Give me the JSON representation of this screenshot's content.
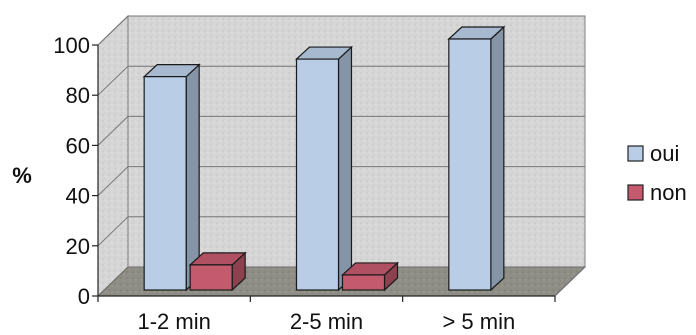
{
  "chart_data": {
    "type": "bar",
    "categories": [
      "1-2 min",
      "2-5 min",
      "> 5 min"
    ],
    "series": [
      {
        "name": "oui",
        "values": [
          85,
          92,
          100
        ],
        "color": "#b9cde6"
      },
      {
        "name": "non",
        "values": [
          10,
          6,
          0
        ],
        "color": "#c45a6e"
      }
    ],
    "ylabel": "%",
    "ylim": [
      0,
      100
    ],
    "yticks": [
      0,
      20,
      40,
      60,
      80,
      100
    ],
    "grid": true,
    "legend_position": "right",
    "three_d": true
  }
}
